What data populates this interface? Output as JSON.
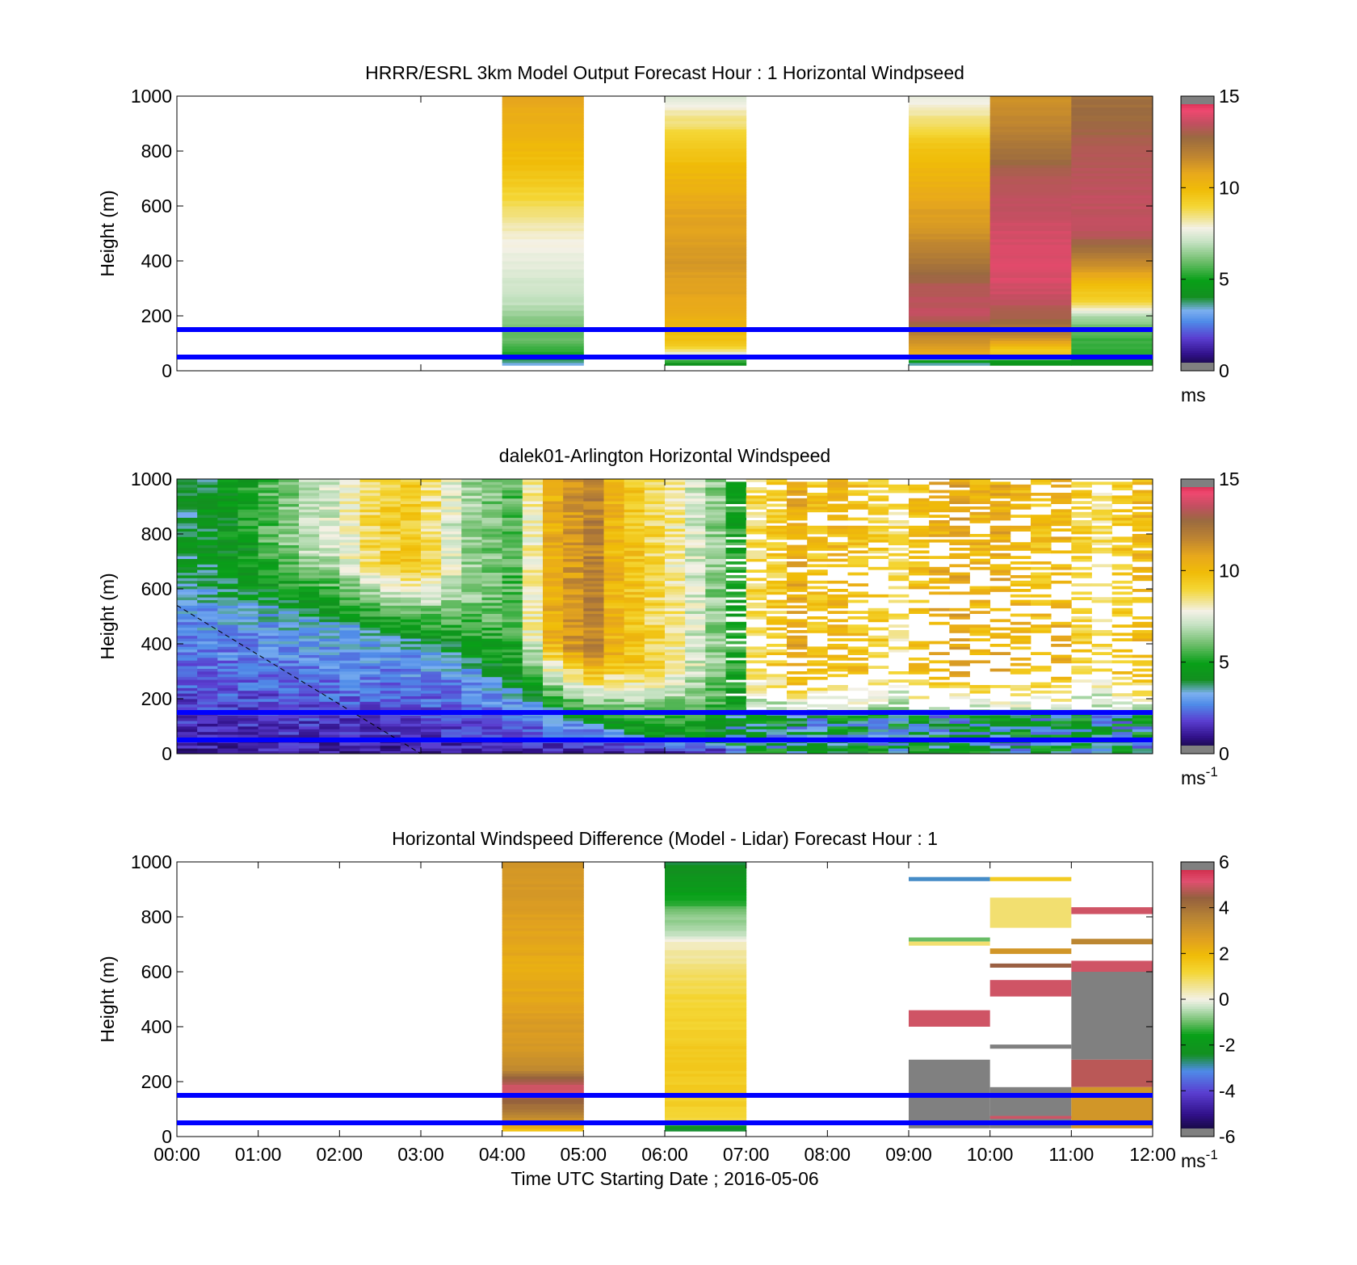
{
  "figure": {
    "xlabel": "Time UTC  Starting Date ; 2016-05-06"
  },
  "colors": {
    "reference_line": "#0000ff",
    "axis": "#000000",
    "no_data": "#ffffff"
  },
  "colormaps": {
    "speed": [
      [
        0.0,
        "#0b0620"
      ],
      [
        0.06,
        "#301088"
      ],
      [
        0.12,
        "#5a3ed0"
      ],
      [
        0.18,
        "#4f8be8"
      ],
      [
        0.22,
        "#7cb0f0"
      ],
      [
        0.27,
        "#138f20"
      ],
      [
        0.33,
        "#08a018"
      ],
      [
        0.4,
        "#6fbe6c"
      ],
      [
        0.47,
        "#c5e2c2"
      ],
      [
        0.52,
        "#f4f1e6"
      ],
      [
        0.55,
        "#f1e6a0"
      ],
      [
        0.6,
        "#f4d634"
      ],
      [
        0.66,
        "#f0bc08"
      ],
      [
        0.72,
        "#e8a81c"
      ],
      [
        0.78,
        "#c08630"
      ],
      [
        0.85,
        "#9a6a40"
      ],
      [
        0.9,
        "#c05060"
      ],
      [
        0.95,
        "#f04870"
      ],
      [
        1.0,
        "#c81a38"
      ]
    ],
    "diff": [
      [
        0.0,
        "#0b0620"
      ],
      [
        0.08,
        "#301088"
      ],
      [
        0.16,
        "#5a3ed0"
      ],
      [
        0.24,
        "#4f8be8"
      ],
      [
        0.3,
        "#138f20"
      ],
      [
        0.37,
        "#08a018"
      ],
      [
        0.42,
        "#6fbe6c"
      ],
      [
        0.47,
        "#c5e2c2"
      ],
      [
        0.5,
        "#f4f1e6"
      ],
      [
        0.54,
        "#f1e6a0"
      ],
      [
        0.6,
        "#f4d634"
      ],
      [
        0.66,
        "#f0bc08"
      ],
      [
        0.72,
        "#e0a020"
      ],
      [
        0.8,
        "#b88434"
      ],
      [
        0.87,
        "#94603e"
      ],
      [
        0.93,
        "#e05070"
      ],
      [
        1.0,
        "#c81a38"
      ]
    ]
  },
  "chart_data": [
    {
      "type": "heatmap",
      "title": "HRRR/ESRL 3km Model Output   Forecast Hour : 1 Horizontal Windpseed",
      "ylabel": "Height (m)",
      "xlabel": "",
      "xlim": [
        0,
        12
      ],
      "ylim": [
        0,
        1000
      ],
      "yticks": [
        0,
        200,
        400,
        600,
        800,
        1000
      ],
      "xticks": [
        0,
        3,
        6,
        9,
        12
      ],
      "colorbar": {
        "min": 0,
        "max": 15,
        "ticks": [
          0,
          5,
          10,
          15
        ],
        "unit": "ms",
        "unit_sup": "",
        "cmap": "speed"
      },
      "reference_lines_height_m": [
        150,
        50
      ],
      "column_width_h": 1,
      "columns": [
        {
          "t0": 4,
          "profile": [
            [
              20,
              3
            ],
            [
              40,
              4
            ],
            [
              60,
              5
            ],
            [
              80,
              5.5
            ],
            [
              100,
              5.8
            ],
            [
              150,
              6
            ],
            [
              200,
              6.5
            ],
            [
              250,
              7
            ],
            [
              300,
              7.2
            ],
            [
              350,
              7.4
            ],
            [
              400,
              7.6
            ],
            [
              450,
              7.8
            ],
            [
              500,
              8
            ],
            [
              550,
              8.3
            ],
            [
              600,
              8.7
            ],
            [
              700,
              9.5
            ],
            [
              800,
              10
            ],
            [
              900,
              10.5
            ],
            [
              1000,
              10.8
            ]
          ]
        },
        {
          "t0": 6,
          "profile": [
            [
              20,
              3.5
            ],
            [
              40,
              6
            ],
            [
              60,
              7
            ],
            [
              80,
              9
            ],
            [
              100,
              9.5
            ],
            [
              150,
              10
            ],
            [
              200,
              10.5
            ],
            [
              300,
              11
            ],
            [
              400,
              11.2
            ],
            [
              500,
              11
            ],
            [
              600,
              10.8
            ],
            [
              700,
              10.2
            ],
            [
              800,
              9.6
            ],
            [
              900,
              8.6
            ],
            [
              1000,
              7.5
            ]
          ]
        },
        {
          "t0": 9,
          "profile": [
            [
              20,
              3
            ],
            [
              40,
              5.2
            ],
            [
              60,
              10.5
            ],
            [
              80,
              11
            ],
            [
              120,
              11.5
            ],
            [
              200,
              13.5
            ],
            [
              300,
              13.3
            ],
            [
              340,
              12.8
            ],
            [
              400,
              12.3
            ],
            [
              450,
              11.8
            ],
            [
              500,
              11.4
            ],
            [
              600,
              10.9
            ],
            [
              700,
              10.3
            ],
            [
              800,
              9.8
            ],
            [
              900,
              8.7
            ],
            [
              1000,
              7.5
            ]
          ]
        },
        {
          "t0": 10,
          "profile": [
            [
              20,
              4
            ],
            [
              40,
              5
            ],
            [
              60,
              9.5
            ],
            [
              80,
              9.5
            ],
            [
              120,
              11.5
            ],
            [
              150,
              12.3
            ],
            [
              200,
              13
            ],
            [
              300,
              13.8
            ],
            [
              400,
              14
            ],
            [
              500,
              13.8
            ],
            [
              600,
              13.5
            ],
            [
              700,
              13.3
            ],
            [
              800,
              12.4
            ],
            [
              900,
              11.7
            ],
            [
              1000,
              11.4
            ]
          ]
        },
        {
          "t0": 11,
          "profile": [
            [
              20,
              4
            ],
            [
              40,
              4.5
            ],
            [
              60,
              5.2
            ],
            [
              80,
              5.3
            ],
            [
              120,
              5.5
            ],
            [
              160,
              6
            ],
            [
              200,
              6.8
            ],
            [
              260,
              9.3
            ],
            [
              300,
              9.6
            ],
            [
              350,
              10.8
            ],
            [
              400,
              11.8
            ],
            [
              500,
              13.4
            ],
            [
              600,
              13.5
            ],
            [
              700,
              13.4
            ],
            [
              800,
              13.2
            ],
            [
              900,
              12.8
            ],
            [
              1000,
              12.5
            ]
          ]
        }
      ]
    },
    {
      "type": "heatmap",
      "title": "dalek01-Arlington  Horizontal Windspeed",
      "ylabel": "Height (m)",
      "xlabel": "",
      "xlim": [
        0,
        12
      ],
      "ylim": [
        0,
        1000
      ],
      "yticks": [
        0,
        200,
        400,
        600,
        800,
        1000
      ],
      "xticks": [
        0,
        3,
        6,
        9,
        12
      ],
      "colorbar": {
        "min": 0,
        "max": 15,
        "ticks": [
          0,
          5,
          10,
          15
        ],
        "unit": "ms",
        "unit_sup": "-1",
        "cmap": "speed"
      },
      "reference_lines_height_m": [
        150,
        50
      ],
      "column_width_h": 0.25,
      "max_height_m": 1000,
      "columns_start_h": 0,
      "column_top_speed": [
        3.8,
        4.2,
        4.5,
        5,
        5.8,
        6.3,
        7,
        7.3,
        8,
        8.8,
        9.2,
        9.4,
        8.6,
        7.4,
        6.6,
        6.1,
        5.7,
        8.1,
        10.5,
        11.2,
        11.8,
        10.2,
        9.6,
        8.9,
        8.2,
        7.3,
        6.4,
        5.1,
        8.9,
        9.4,
        10.6,
        9.7,
        10.1,
        9.8,
        9.3,
        8.7,
        9.9,
        10.4,
        10.8,
        10.2,
        10.5,
        10.1,
        9.8,
        10.3,
        9.2,
        8.7,
        9.6,
        10.1
      ],
      "column_transition_m": [
        620,
        600,
        580,
        560,
        540,
        520,
        500,
        480,
        470,
        450,
        440,
        420,
        400,
        370,
        330,
        280,
        240,
        200,
        160,
        130,
        110,
        90,
        70,
        60,
        50,
        45,
        40,
        40,
        40,
        40,
        40,
        40,
        40,
        40,
        40,
        40,
        40,
        40,
        40,
        40,
        40,
        40,
        40,
        40,
        40,
        40,
        40,
        40
      ],
      "column_gap_fraction": [
        0,
        0,
        0,
        0,
        0,
        0,
        0,
        0,
        0,
        0,
        0,
        0,
        0,
        0,
        0,
        0,
        0,
        0,
        0,
        0,
        0,
        0,
        0,
        0,
        0,
        0,
        0,
        0.3,
        0.35,
        0.4,
        0.45,
        0.5,
        0.5,
        0.55,
        0.55,
        0.6,
        0.6,
        0.6,
        0.6,
        0.55,
        0.55,
        0.55,
        0.6,
        0.6,
        0.55,
        0.55,
        0.55,
        0.5
      ],
      "dashed_line": {
        "from": [
          0,
          540
        ],
        "to": [
          3,
          0
        ]
      }
    },
    {
      "type": "heatmap",
      "title": "Horizontal Windspeed Difference (Model - Lidar) Forecast Hour : 1",
      "ylabel": "Height (m)",
      "xlabel": "Time UTC  Starting Date ; 2016-05-06",
      "xlim": [
        0,
        12
      ],
      "ylim": [
        0,
        1000
      ],
      "yticks": [
        0,
        200,
        400,
        600,
        800,
        1000
      ],
      "xticks": [
        0,
        1,
        2,
        3,
        4,
        5,
        6,
        7,
        8,
        9,
        10,
        11,
        12
      ],
      "xticklabels": [
        "00:00",
        "01:00",
        "02:00",
        "03:00",
        "04:00",
        "05:00",
        "06:00",
        "07:00",
        "08:00",
        "09:00",
        "10:00",
        "11:00",
        "12:00"
      ],
      "colorbar": {
        "min": -6,
        "max": 6,
        "ticks": [
          -6,
          -4,
          -2,
          0,
          2,
          4,
          6
        ],
        "unit": "ms",
        "unit_sup": "-1",
        "cmap": "diff"
      },
      "reference_lines_height_m": [
        150,
        50
      ],
      "column_width_h": 1,
      "columns": [
        {
          "t0": 4,
          "profile": [
            [
              20,
              1.5
            ],
            [
              40,
              2.5
            ],
            [
              60,
              3.2
            ],
            [
              80,
              3.5
            ],
            [
              120,
              4.2
            ],
            [
              160,
              5
            ],
            [
              200,
              4.8
            ],
            [
              240,
              3.5
            ],
            [
              300,
              3
            ],
            [
              400,
              2.8
            ],
            [
              500,
              2.5
            ],
            [
              600,
              2.3
            ],
            [
              700,
              2.5
            ],
            [
              800,
              2.7
            ],
            [
              900,
              2.9
            ],
            [
              1000,
              3
            ]
          ]
        },
        {
          "t0": 6,
          "profile": [
            [
              20,
              -2.5
            ],
            [
              40,
              -2
            ],
            [
              60,
              1
            ],
            [
              80,
              1.2
            ],
            [
              120,
              1.4
            ],
            [
              200,
              1.5
            ],
            [
              300,
              1.6
            ],
            [
              400,
              1.3
            ],
            [
              500,
              1.2
            ],
            [
              600,
              0.8
            ],
            [
              700,
              0.3
            ],
            [
              750,
              -0.5
            ],
            [
              800,
              -0.8
            ],
            [
              900,
              -1.8
            ],
            [
              1000,
              -2.5
            ]
          ]
        }
      ],
      "bands": [
        {
          "t0": 9,
          "y0": 930,
          "y1": 945,
          "v": -3
        },
        {
          "t0": 9,
          "y0": 710,
          "y1": 725,
          "v": -1
        },
        {
          "t0": 9,
          "y0": 695,
          "y1": 710,
          "v": 0.8
        },
        {
          "t0": 9,
          "y0": 400,
          "y1": 460,
          "v": 5
        },
        {
          "t0": 9,
          "y0": 30,
          "y1": 280,
          "v": 7
        },
        {
          "t0": 10,
          "y0": 930,
          "y1": 945,
          "v": 1.5
        },
        {
          "t0": 10,
          "y0": 760,
          "y1": 870,
          "v": 0.8
        },
        {
          "t0": 10,
          "y0": 665,
          "y1": 685,
          "v": 3
        },
        {
          "t0": 10,
          "y0": 615,
          "y1": 630,
          "v": 4.5
        },
        {
          "t0": 10,
          "y0": 510,
          "y1": 570,
          "v": 5
        },
        {
          "t0": 10,
          "y0": 320,
          "y1": 335,
          "v": 7
        },
        {
          "t0": 10,
          "y0": 30,
          "y1": 180,
          "v": 7
        },
        {
          "t0": 10,
          "y0": 65,
          "y1": 75,
          "v": 5
        },
        {
          "t0": 11,
          "y0": 810,
          "y1": 835,
          "v": 5
        },
        {
          "t0": 11,
          "y0": 700,
          "y1": 720,
          "v": 3.5
        },
        {
          "t0": 11,
          "y0": 600,
          "y1": 640,
          "v": 5
        },
        {
          "t0": 11,
          "y0": 280,
          "y1": 600,
          "v": 7
        },
        {
          "t0": 11,
          "y0": 180,
          "y1": 280,
          "v": 4.8
        },
        {
          "t0": 11,
          "y0": 30,
          "y1": 180,
          "v": 3
        }
      ]
    }
  ]
}
